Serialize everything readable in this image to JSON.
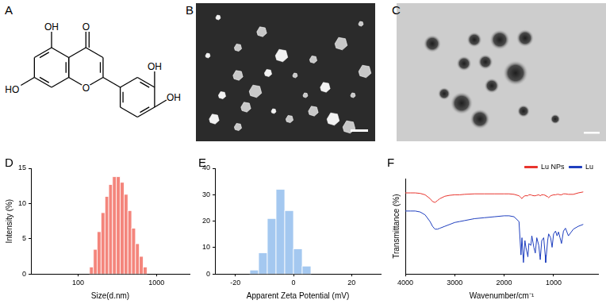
{
  "panel_labels": [
    "A",
    "B",
    "C",
    "D",
    "E",
    "F"
  ],
  "structure": {
    "atom_labels": [
      "OH",
      "O",
      "HO",
      "O",
      "OH",
      "OH"
    ]
  },
  "chart_data": [
    {
      "type": "histogram",
      "x_label": "Size(d.nm)",
      "y_label": "Intensity (%)",
      "bins": [
        140,
        157,
        175,
        196,
        220,
        246,
        275,
        308,
        345,
        386,
        432,
        483,
        541,
        605,
        677,
        758
      ],
      "counts": [
        1,
        3.5,
        6,
        8.7,
        11,
        12.7,
        13.8,
        13.8,
        13,
        11.3,
        9,
        6.5,
        4.3,
        2.5,
        1
      ],
      "color": "#f4857c",
      "log": "x",
      "xlim": [
        25,
        2650
      ],
      "xticks": [
        100,
        1000
      ],
      "ylim": [
        0,
        15
      ],
      "yticks": [
        0,
        5,
        10,
        15
      ],
      "grid": false
    },
    {
      "type": "histogram",
      "x_label": "Apparent Zeta Potential (mV)",
      "bins": [
        -15,
        -12,
        -9,
        -6,
        -3,
        0,
        3,
        6
      ],
      "counts": [
        1.5,
        8,
        21,
        32,
        24,
        9.5,
        3
      ],
      "color": "#a4c8f0",
      "xlim": [
        -27,
        30
      ],
      "xticks": [
        -20,
        0,
        20
      ],
      "ylim": [
        0,
        40
      ],
      "yticks": [
        0,
        10,
        20,
        30,
        40
      ],
      "grid": false
    },
    {
      "type": "line",
      "x_label": "Wavenumber/cm⁻¹",
      "y_label": "Transmittance (%)",
      "x": [
        4000,
        3900,
        3800,
        3700,
        3600,
        3500,
        3450,
        3400,
        3350,
        3300,
        3200,
        3100,
        3000,
        2900,
        2800,
        2600,
        2400,
        2200,
        2000,
        1900,
        1800,
        1700,
        1660,
        1640,
        1610,
        1580,
        1560,
        1520,
        1500,
        1460,
        1440,
        1400,
        1370,
        1340,
        1300,
        1270,
        1240,
        1200,
        1170,
        1160,
        1120,
        1100,
        1060,
        1030,
        1000,
        960,
        930,
        900,
        870,
        840,
        800,
        760,
        700,
        600,
        500,
        400
      ],
      "series": [
        {
          "name": "Lu NPs",
          "color": "#e8352e",
          "values": [
            0.85,
            0.85,
            0.85,
            0.845,
            0.83,
            0.79,
            0.76,
            0.75,
            0.77,
            0.79,
            0.815,
            0.825,
            0.83,
            0.83,
            0.835,
            0.84,
            0.84,
            0.84,
            0.84,
            0.84,
            0.835,
            0.82,
            0.8,
            0.79,
            0.81,
            0.82,
            0.82,
            0.82,
            0.83,
            0.83,
            0.825,
            0.82,
            0.82,
            0.825,
            0.83,
            0.82,
            0.83,
            0.83,
            0.825,
            0.82,
            0.81,
            0.8,
            0.82,
            0.825,
            0.83,
            0.83,
            0.835,
            0.835,
            0.83,
            0.83,
            0.84,
            0.84,
            0.835,
            0.835,
            0.85,
            0.86
          ]
        },
        {
          "name": "Lu",
          "color": "#1f3fbf",
          "values": [
            0.66,
            0.66,
            0.66,
            0.65,
            0.62,
            0.55,
            0.5,
            0.47,
            0.47,
            0.48,
            0.5,
            0.52,
            0.54,
            0.55,
            0.56,
            0.58,
            0.59,
            0.6,
            0.61,
            0.61,
            0.6,
            0.55,
            0.2,
            0.38,
            0.12,
            0.35,
            0.28,
            0.18,
            0.32,
            0.3,
            0.4,
            0.28,
            0.22,
            0.38,
            0.3,
            0.15,
            0.35,
            0.38,
            0.2,
            0.12,
            0.35,
            0.42,
            0.38,
            0.28,
            0.42,
            0.45,
            0.4,
            0.44,
            0.38,
            0.32,
            0.45,
            0.48,
            0.4,
            0.47,
            0.5,
            0.52
          ]
        }
      ],
      "xlim": [
        4000,
        100
      ],
      "xticks": [
        4000,
        3000,
        2000,
        1000
      ],
      "ylim": [
        0,
        1
      ],
      "tick_labels": "x",
      "legend": "upper right",
      "grid": false
    }
  ]
}
